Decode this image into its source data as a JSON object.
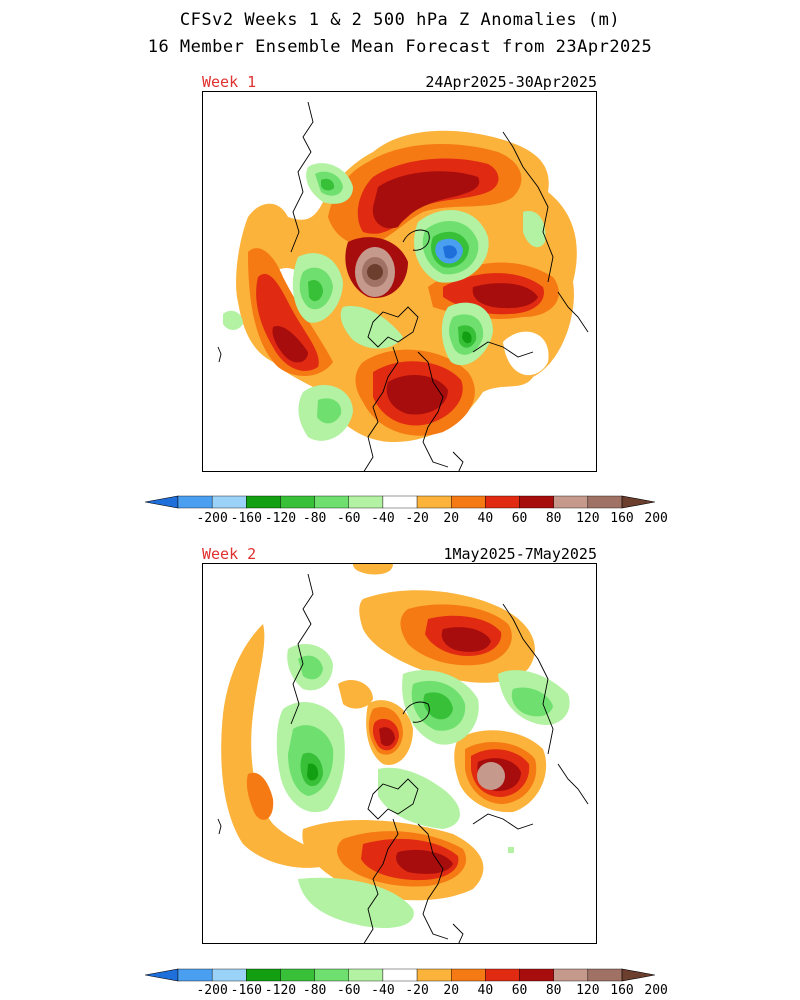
{
  "title_line1": "CFSv2 Weeks 1 & 2 500 hPa Z Anomalies (m)",
  "title_line2": "16 Member Ensemble Mean Forecast from 23Apr2025",
  "panels": [
    {
      "label": "Week 1",
      "dates": "24Apr2025-30Apr2025"
    },
    {
      "label": "Week 2",
      "dates": "1May2025-7May2025"
    }
  ],
  "colorbar": {
    "ticks": [
      "-200",
      "-160",
      "-120",
      "-80",
      "-60",
      "-40",
      "-20",
      "20",
      "40",
      "60",
      "80",
      "120",
      "160",
      "200"
    ],
    "colors": [
      "#1e6fd9",
      "#4a9ff0",
      "#9bd2f7",
      "#12a012",
      "#38c038",
      "#6fe06f",
      "#b2f2a2",
      "#ffffff",
      "#fbb33c",
      "#f57a14",
      "#e12a12",
      "#a80d0d",
      "#c59a8c",
      "#a07265",
      "#6b3e2e"
    ]
  }
}
